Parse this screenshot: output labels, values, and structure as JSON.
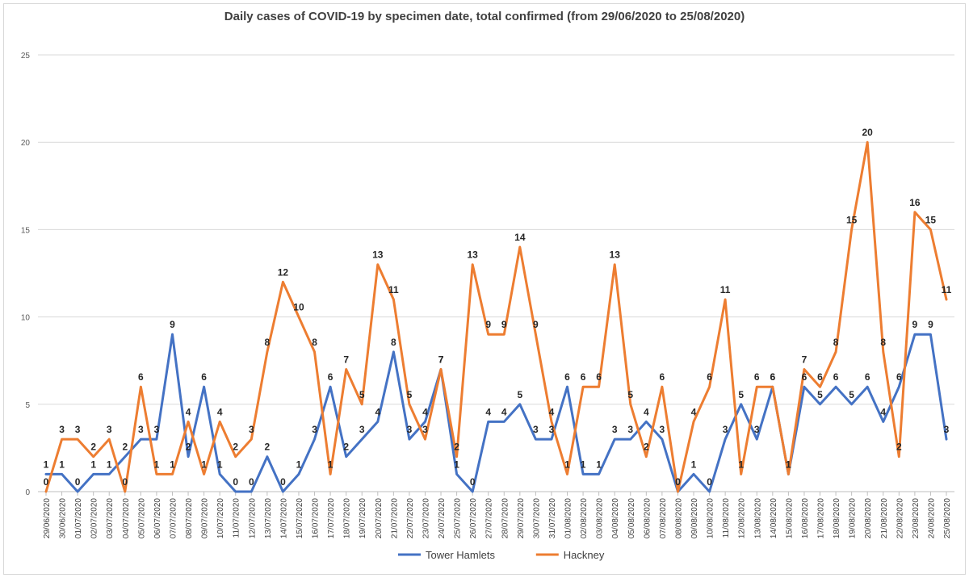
{
  "chart_data": {
    "type": "line",
    "title": "Daily cases of COVID-19 by specimen date, total confirmed (from 29/06/2020 to 25/08/2020)",
    "xlabel": "",
    "ylabel": "",
    "ylim": [
      0,
      25
    ],
    "yticks": [
      0,
      5,
      10,
      15,
      20,
      25
    ],
    "grid": true,
    "legend": "bottom",
    "categories": [
      "29/06/2020",
      "30/06/2020",
      "01/07/2020",
      "02/07/2020",
      "03/07/2020",
      "04/07/2020",
      "05/07/2020",
      "06/07/2020",
      "07/07/2020",
      "08/07/2020",
      "09/07/2020",
      "10/07/2020",
      "11/07/2020",
      "12/07/2020",
      "13/07/2020",
      "14/07/2020",
      "15/07/2020",
      "16/07/2020",
      "17/07/2020",
      "18/07/2020",
      "19/07/2020",
      "20/07/2020",
      "21/07/2020",
      "22/07/2020",
      "23/07/2020",
      "24/07/2020",
      "25/07/2020",
      "26/07/2020",
      "27/07/2020",
      "28/07/2020",
      "29/07/2020",
      "30/07/2020",
      "31/07/2020",
      "01/08/2020",
      "02/08/2020",
      "03/08/2020",
      "04/08/2020",
      "05/08/2020",
      "06/08/2020",
      "07/08/2020",
      "08/08/2020",
      "09/08/2020",
      "10/08/2020",
      "11/08/2020",
      "12/08/2020",
      "13/08/2020",
      "14/08/2020",
      "15/08/2020",
      "16/08/2020",
      "17/08/2020",
      "18/08/2020",
      "19/08/2020",
      "20/08/2020",
      "21/08/2020",
      "22/08/2020",
      "23/08/2020",
      "24/08/2020",
      "25/08/2020"
    ],
    "series": [
      {
        "name": "Tower Hamlets",
        "color": "#4472c4",
        "values": [
          1,
          1,
          0,
          1,
          1,
          2,
          3,
          3,
          9,
          2,
          6,
          1,
          0,
          0,
          2,
          0,
          1,
          3,
          6,
          2,
          3,
          4,
          8,
          3,
          4,
          7,
          1,
          0,
          4,
          4,
          5,
          3,
          3,
          6,
          1,
          1,
          3,
          3,
          4,
          3,
          0,
          1,
          0,
          3,
          5,
          3,
          6,
          1,
          6,
          5,
          6,
          5,
          6,
          4,
          6,
          9,
          9,
          3
        ]
      },
      {
        "name": "Hackney",
        "color": "#ed7d31",
        "values": [
          0,
          3,
          3,
          2,
          3,
          0,
          6,
          1,
          1,
          4,
          1,
          4,
          2,
          3,
          8,
          12,
          10,
          8,
          1,
          7,
          5,
          13,
          11,
          5,
          3,
          7,
          2,
          13,
          9,
          9,
          14,
          9,
          4,
          1,
          6,
          6,
          13,
          5,
          2,
          6,
          0,
          4,
          6,
          11,
          1,
          6,
          6,
          1,
          7,
          6,
          8,
          15,
          20,
          8,
          2,
          16,
          15,
          11
        ]
      }
    ]
  }
}
